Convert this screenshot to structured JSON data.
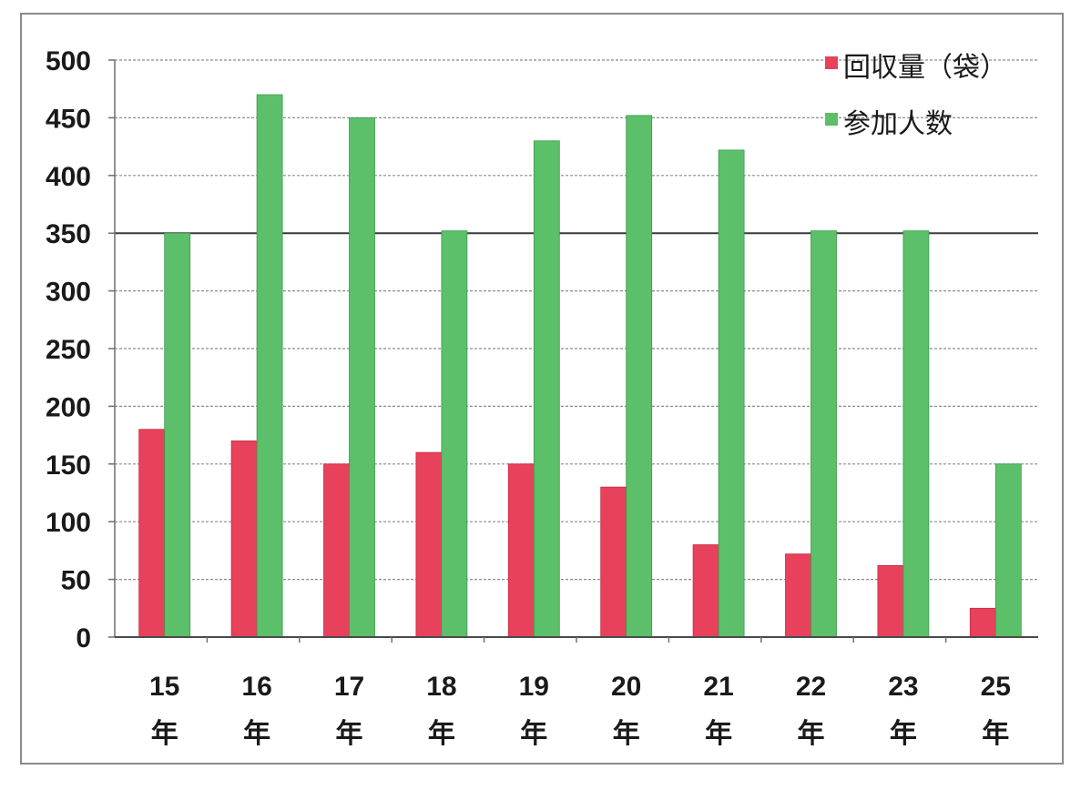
{
  "chart_data": {
    "type": "bar",
    "title": "",
    "xlabel": "",
    "ylabel": "",
    "ylim": [
      0,
      500
    ],
    "yticks": [
      "0",
      "50",
      "100",
      "150",
      "200",
      "250",
      "300",
      "350",
      "400",
      "450",
      "500"
    ],
    "grid": true,
    "legend_position": "top-right",
    "categories": [
      {
        "num": "15",
        "unit": "年"
      },
      {
        "num": "16",
        "unit": "年"
      },
      {
        "num": "17",
        "unit": "年"
      },
      {
        "num": "18",
        "unit": "年"
      },
      {
        "num": "19",
        "unit": "年"
      },
      {
        "num": "20",
        "unit": "年"
      },
      {
        "num": "21",
        "unit": "年"
      },
      {
        "num": "22",
        "unit": "年"
      },
      {
        "num": "23",
        "unit": "年"
      },
      {
        "num": "25",
        "unit": "年"
      }
    ],
    "series": [
      {
        "name": "回収量（袋）",
        "color": "#e8415c",
        "values": [
          180,
          170,
          150,
          160,
          150,
          130,
          80,
          72,
          62,
          25
        ]
      },
      {
        "name": "参加人数",
        "color": "#5cbf6a",
        "values": [
          350,
          470,
          450,
          352,
          430,
          452,
          422,
          352,
          352,
          150
        ]
      }
    ]
  }
}
